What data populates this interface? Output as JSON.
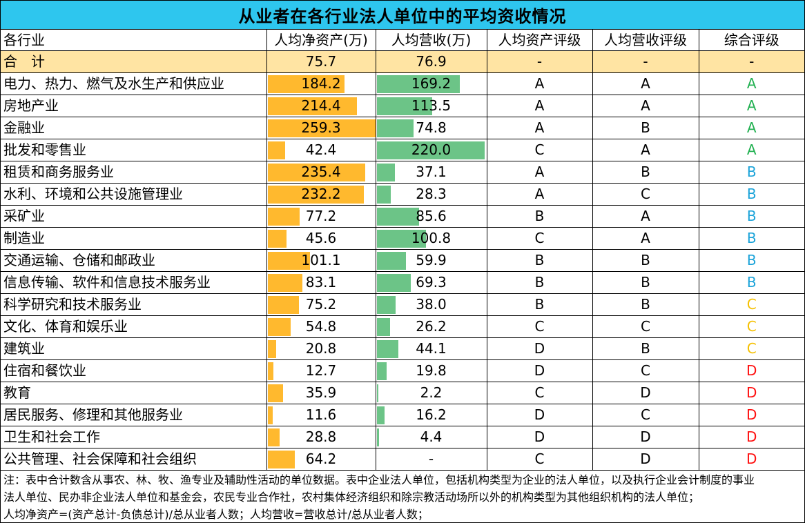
{
  "title": "从业者在各行业法人单位中的平均资收情况",
  "headers": [
    "各行业",
    "人均净资产(万)",
    "人均营收(万)",
    "人均资产评级",
    "人均营收评级",
    "综合评级"
  ],
  "total": {
    "name": "合　计",
    "asset": "75.7",
    "revenue": "76.9",
    "asset_grade": "-",
    "revenue_grade": "-",
    "overall": "-"
  },
  "chart_data": {
    "type": "table",
    "columns": [
      "各行业",
      "人均净资产(万)",
      "人均营收(万)",
      "人均资产评级",
      "人均营收评级",
      "综合评级"
    ],
    "colors": {
      "asset_bar": "#ffb92e",
      "revenue_bar": "#6cc487",
      "header": "#2ec6ee",
      "total_row": "#ffe4a3",
      "grade_A": "#20b050",
      "grade_B": "#1aa3d9",
      "grade_C": "#f5c000",
      "grade_D": "#ff1010"
    },
    "rows": [
      {
        "name": "电力、热力、燃气及水生产和供应业",
        "asset": 184.2,
        "revenue": 169.2,
        "asset_grade": "A",
        "revenue_grade": "A",
        "overall": "A"
      },
      {
        "name": "房地产业",
        "asset": 214.4,
        "revenue": 113.5,
        "asset_grade": "A",
        "revenue_grade": "A",
        "overall": "A"
      },
      {
        "name": "金融业",
        "asset": 259.3,
        "revenue": 74.8,
        "asset_grade": "A",
        "revenue_grade": "B",
        "overall": "A"
      },
      {
        "name": "批发和零售业",
        "asset": 42.4,
        "revenue": 220.0,
        "asset_grade": "C",
        "revenue_grade": "A",
        "overall": "A"
      },
      {
        "name": "租赁和商务服务业",
        "asset": 235.4,
        "revenue": 37.1,
        "asset_grade": "A",
        "revenue_grade": "B",
        "overall": "B"
      },
      {
        "name": "水利、环境和公共设施管理业",
        "asset": 232.2,
        "revenue": 28.3,
        "asset_grade": "A",
        "revenue_grade": "C",
        "overall": "B"
      },
      {
        "name": "采矿业",
        "asset": 77.2,
        "revenue": 85.6,
        "asset_grade": "B",
        "revenue_grade": "A",
        "overall": "B"
      },
      {
        "name": "制造业",
        "asset": 45.6,
        "revenue": 100.8,
        "asset_grade": "C",
        "revenue_grade": "A",
        "overall": "B"
      },
      {
        "name": "交通运输、仓储和邮政业",
        "asset": 101.1,
        "revenue": 59.9,
        "asset_grade": "B",
        "revenue_grade": "B",
        "overall": "B"
      },
      {
        "name": "信息传输、软件和信息技术服务业",
        "asset": 83.1,
        "revenue": 69.3,
        "asset_grade": "B",
        "revenue_grade": "B",
        "overall": "B"
      },
      {
        "name": "科学研究和技术服务业",
        "asset": 75.2,
        "revenue": 38.0,
        "asset_grade": "B",
        "revenue_grade": "B",
        "overall": "C"
      },
      {
        "name": "文化、体育和娱乐业",
        "asset": 54.8,
        "revenue": 26.2,
        "asset_grade": "C",
        "revenue_grade": "C",
        "overall": "C"
      },
      {
        "name": "建筑业",
        "asset": 20.8,
        "revenue": 44.1,
        "asset_grade": "D",
        "revenue_grade": "B",
        "overall": "C"
      },
      {
        "name": "住宿和餐饮业",
        "asset": 12.7,
        "revenue": 19.8,
        "asset_grade": "D",
        "revenue_grade": "C",
        "overall": "D"
      },
      {
        "name": "教育",
        "asset": 35.9,
        "revenue": 2.2,
        "asset_grade": "C",
        "revenue_grade": "D",
        "overall": "D"
      },
      {
        "name": "居民服务、修理和其他服务业",
        "asset": 11.6,
        "revenue": 16.2,
        "asset_grade": "D",
        "revenue_grade": "C",
        "overall": "D"
      },
      {
        "name": "卫生和社会工作",
        "asset": 28.8,
        "revenue": 4.4,
        "asset_grade": "D",
        "revenue_grade": "D",
        "overall": "D"
      },
      {
        "name": "公共管理、社会保障和社会组织",
        "asset": 64.2,
        "revenue": null,
        "revenue_text": "-",
        "asset_grade": "C",
        "revenue_grade": "D",
        "overall": "D"
      }
    ]
  },
  "notes": [
    "注：表中合计数含从事农、林、牧、渔专业及辅助性活动的单位数据。表中企业法人单位，包括机构类型为企业的法人单位，以及执行企业会计制度的事业",
    "法人单位、民办非企业法人单位和基金会，农民专业合作社，农村集体经济组织和除宗教活动场所以外的机构类型为其他组织机构的法人单位；",
    "人均净资产=(资产总计-负债总计)/总从业者人数；人均营收=营收总计/总从业者人数；"
  ]
}
